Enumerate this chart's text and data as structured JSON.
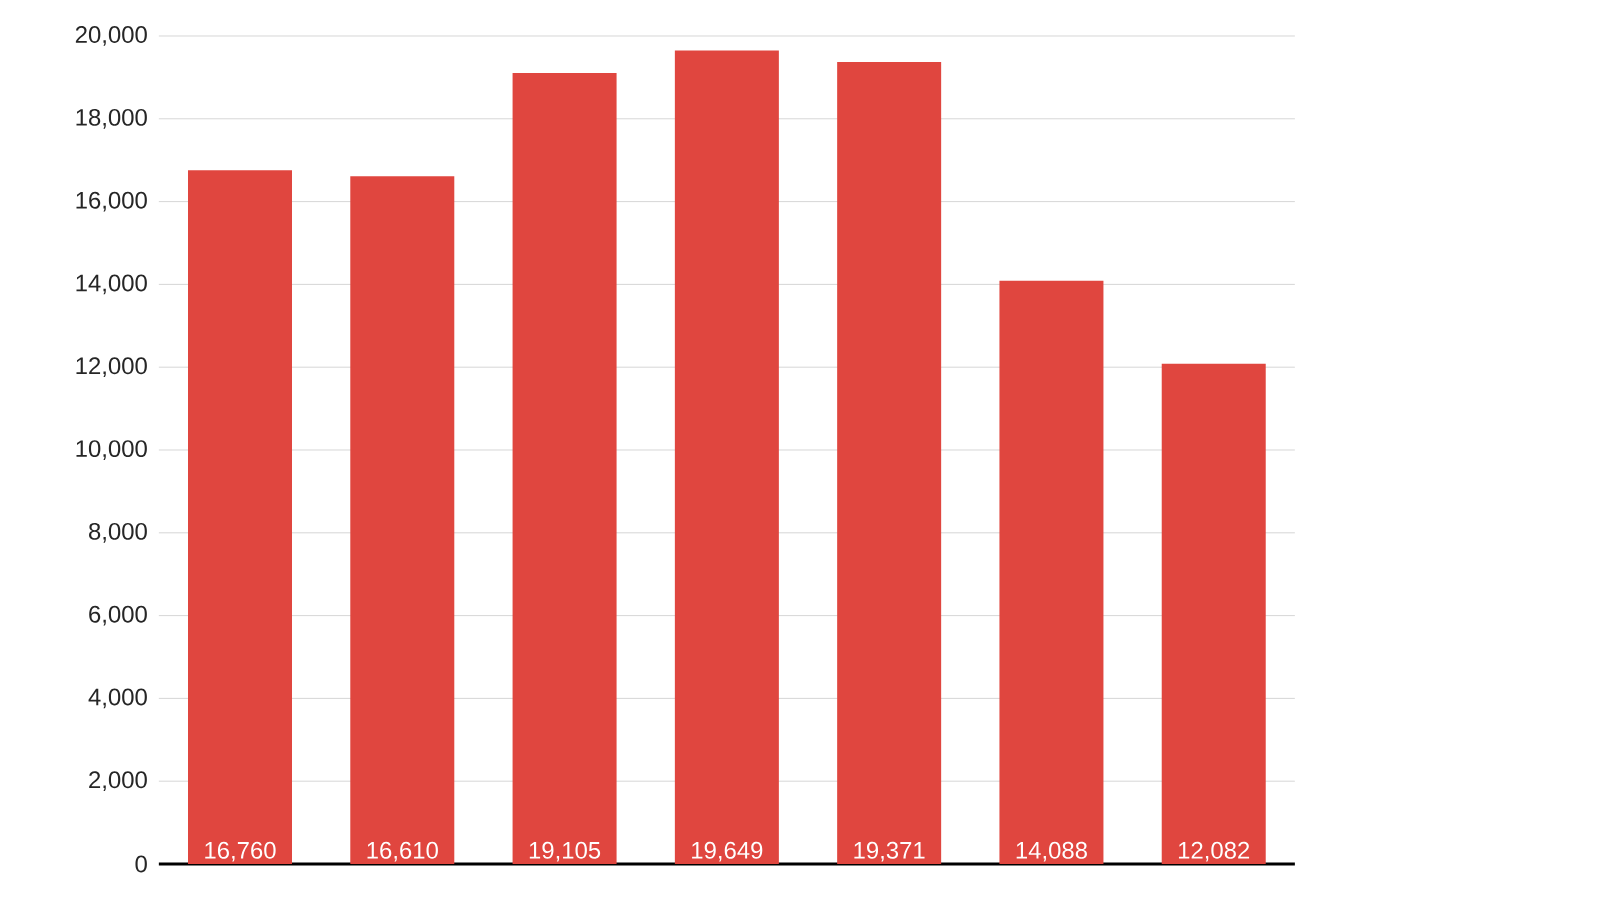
{
  "chart_data": {
    "type": "bar",
    "categories": [
      null,
      null,
      null,
      null,
      null,
      null,
      null
    ],
    "values": [
      16760,
      16610,
      19105,
      19649,
      19371,
      14088,
      12082
    ],
    "value_labels": [
      "16,760",
      "16,610",
      "19,105",
      "19,649",
      "19,371",
      "14,088",
      "12,082"
    ],
    "color": "#e0463f",
    "ylim": [
      0,
      20000
    ],
    "yticks": [
      {
        "value": 0,
        "label": "0"
      },
      {
        "value": 2000,
        "label": "2,000"
      },
      {
        "value": 4000,
        "label": "4,000"
      },
      {
        "value": 6000,
        "label": "6,000"
      },
      {
        "value": 8000,
        "label": "8,000"
      },
      {
        "value": 10000,
        "label": "10,000"
      },
      {
        "value": 12000,
        "label": "12,000"
      },
      {
        "value": 14000,
        "label": "14,000"
      },
      {
        "value": 16000,
        "label": "16,000"
      },
      {
        "value": 18000,
        "label": "18,000"
      },
      {
        "value": 20000,
        "label": "20,000"
      }
    ],
    "grid": "y"
  }
}
